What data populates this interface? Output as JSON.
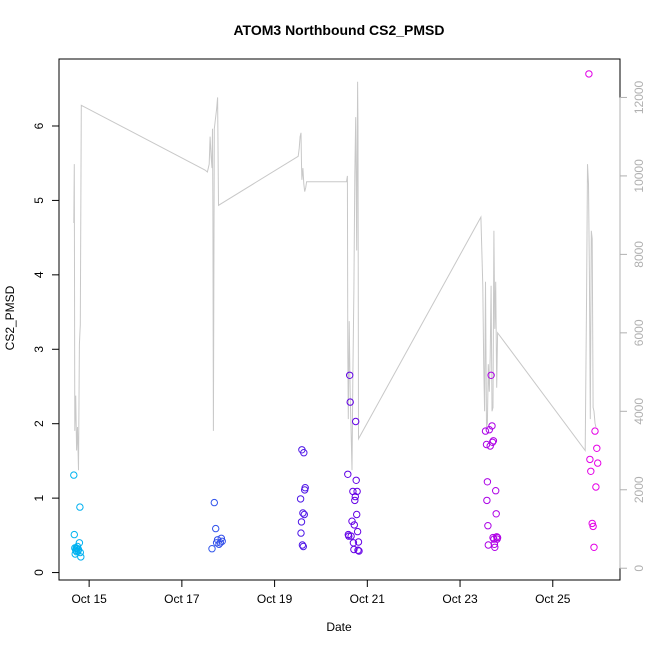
{
  "chart_data": {
    "type": "scatter",
    "title": "ATOM3 Northbound CS2_PMSD",
    "xlabel": "Date",
    "ylabel": "CS2_PMSD",
    "x_ticks": [
      {
        "day": 14.85,
        "label": "Oct 15"
      },
      {
        "day": 16.85,
        "label": "Oct 17"
      },
      {
        "day": 18.85,
        "label": "Oct 19"
      },
      {
        "day": 20.85,
        "label": "Oct 21"
      },
      {
        "day": 22.85,
        "label": "Oct 23"
      },
      {
        "day": 24.85,
        "label": "Oct 25"
      }
    ],
    "xlim": [
      14.2,
      26.3
    ],
    "ylim": [
      -0.1,
      6.9
    ],
    "y_ticks": [
      0,
      1,
      2,
      3,
      4,
      5,
      6
    ],
    "y2_ticks": [
      0,
      2000,
      4000,
      6000,
      8000,
      10000,
      12000
    ],
    "y2lim": [
      -300,
      12980
    ],
    "grid": false,
    "point_color_start": "#00b4f0",
    "point_color_mid": "#5a00e6",
    "point_color_end": "#e600e6",
    "line_color": "#c8c8c8",
    "points": [
      [
        14.52,
        1.31
      ],
      [
        14.53,
        0.51
      ],
      [
        14.54,
        0.33
      ],
      [
        14.55,
        0.25
      ],
      [
        14.56,
        0.3
      ],
      [
        14.57,
        0.33
      ],
      [
        14.58,
        0.28
      ],
      [
        14.59,
        0.32
      ],
      [
        14.6,
        0.35
      ],
      [
        14.61,
        0.29
      ],
      [
        14.62,
        0.31
      ],
      [
        14.64,
        0.4
      ],
      [
        14.65,
        0.88
      ],
      [
        14.66,
        0.27
      ],
      [
        14.67,
        0.21
      ],
      [
        17.5,
        0.32
      ],
      [
        17.55,
        0.94
      ],
      [
        17.58,
        0.59
      ],
      [
        17.6,
        0.4
      ],
      [
        17.62,
        0.44
      ],
      [
        17.65,
        0.38
      ],
      [
        17.68,
        0.4
      ],
      [
        17.7,
        0.46
      ],
      [
        17.72,
        0.42
      ],
      [
        19.41,
        0.99
      ],
      [
        19.42,
        0.53
      ],
      [
        19.43,
        0.68
      ],
      [
        19.44,
        1.65
      ],
      [
        19.45,
        0.37
      ],
      [
        19.46,
        0.8
      ],
      [
        19.47,
        0.35
      ],
      [
        19.48,
        1.61
      ],
      [
        19.49,
        0.78
      ],
      [
        19.5,
        1.11
      ],
      [
        19.51,
        1.14
      ],
      [
        20.43,
        1.32
      ],
      [
        20.44,
        0.51
      ],
      [
        20.45,
        0.49
      ],
      [
        20.47,
        2.65
      ],
      [
        20.48,
        2.29
      ],
      [
        20.5,
        0.49
      ],
      [
        20.52,
        0.69
      ],
      [
        20.54,
        1.09
      ],
      [
        20.55,
        0.4
      ],
      [
        20.56,
        0.31
      ],
      [
        20.57,
        0.64
      ],
      [
        20.58,
        0.97
      ],
      [
        20.59,
        1.02
      ],
      [
        20.6,
        2.03
      ],
      [
        20.61,
        1.24
      ],
      [
        20.62,
        0.78
      ],
      [
        20.63,
        1.09
      ],
      [
        20.64,
        0.55
      ],
      [
        20.65,
        0.3
      ],
      [
        20.66,
        0.41
      ],
      [
        20.67,
        0.29
      ],
      [
        23.4,
        1.9
      ],
      [
        23.42,
        1.72
      ],
      [
        23.43,
        0.97
      ],
      [
        23.44,
        1.22
      ],
      [
        23.45,
        0.63
      ],
      [
        23.46,
        0.37
      ],
      [
        23.48,
        1.92
      ],
      [
        23.5,
        1.7
      ],
      [
        23.52,
        2.65
      ],
      [
        23.54,
        1.97
      ],
      [
        23.55,
        1.75
      ],
      [
        23.56,
        0.47
      ],
      [
        23.57,
        1.77
      ],
      [
        23.58,
        0.45
      ],
      [
        23.59,
        0.38
      ],
      [
        23.6,
        0.34
      ],
      [
        23.62,
        1.1
      ],
      [
        23.63,
        0.79
      ],
      [
        23.64,
        0.48
      ],
      [
        23.65,
        0.45
      ],
      [
        23.66,
        0.47
      ],
      [
        25.63,
        6.7
      ],
      [
        25.65,
        1.52
      ],
      [
        25.67,
        1.36
      ],
      [
        25.7,
        0.66
      ],
      [
        25.72,
        0.62
      ],
      [
        25.74,
        0.34
      ],
      [
        25.76,
        1.9
      ],
      [
        25.78,
        1.15
      ],
      [
        25.8,
        1.67
      ],
      [
        25.82,
        1.47
      ]
    ],
    "line_secondary": [
      [
        14.52,
        8800
      ],
      [
        14.53,
        10300
      ],
      [
        14.54,
        3500
      ],
      [
        14.56,
        4400
      ],
      [
        14.58,
        3000
      ],
      [
        14.6,
        3600
      ],
      [
        14.62,
        2500
      ],
      [
        14.64,
        5700
      ],
      [
        14.65,
        6000
      ],
      [
        14.66,
        6200
      ],
      [
        14.68,
        11800
      ],
      [
        17.35,
        10150
      ],
      [
        17.4,
        10100
      ],
      [
        17.44,
        10300
      ],
      [
        17.46,
        11000
      ],
      [
        17.48,
        10500
      ],
      [
        17.5,
        10200
      ],
      [
        17.51,
        11200
      ],
      [
        17.52,
        9100
      ],
      [
        17.53,
        3500
      ],
      [
        17.55,
        11200
      ],
      [
        17.57,
        11400
      ],
      [
        17.6,
        11700
      ],
      [
        17.62,
        12000
      ],
      [
        17.64,
        9250
      ],
      [
        19.36,
        10500
      ],
      [
        19.38,
        10700
      ],
      [
        19.4,
        11000
      ],
      [
        19.42,
        11100
      ],
      [
        19.43,
        10300
      ],
      [
        19.44,
        9900
      ],
      [
        19.46,
        10200
      ],
      [
        19.48,
        9800
      ],
      [
        19.5,
        9600
      ],
      [
        19.52,
        9700
      ],
      [
        19.54,
        9850
      ],
      [
        20.4,
        9850
      ],
      [
        20.42,
        10000
      ],
      [
        20.43,
        5500
      ],
      [
        20.44,
        3800
      ],
      [
        20.46,
        6300
      ],
      [
        20.48,
        4400
      ],
      [
        20.5,
        3500
      ],
      [
        20.52,
        2500
      ],
      [
        20.54,
        5000
      ],
      [
        20.56,
        7100
      ],
      [
        20.58,
        10000
      ],
      [
        20.6,
        11500
      ],
      [
        20.62,
        8100
      ],
      [
        20.64,
        12400
      ],
      [
        20.65,
        11200
      ],
      [
        20.66,
        3300
      ],
      [
        23.3,
        8950
      ],
      [
        23.34,
        7200
      ],
      [
        23.36,
        5200
      ],
      [
        23.38,
        4000
      ],
      [
        23.4,
        7300
      ],
      [
        23.42,
        3600
      ],
      [
        23.44,
        3700
      ],
      [
        23.46,
        5200
      ],
      [
        23.48,
        4500
      ],
      [
        23.5,
        5400
      ],
      [
        23.52,
        7200
      ],
      [
        23.54,
        4000
      ],
      [
        23.56,
        4100
      ],
      [
        23.58,
        8600
      ],
      [
        23.6,
        6100
      ],
      [
        23.62,
        7300
      ],
      [
        23.64,
        4600
      ],
      [
        23.66,
        6000
      ],
      [
        25.55,
        3000
      ],
      [
        25.58,
        7000
      ],
      [
        25.6,
        10300
      ],
      [
        25.62,
        9800
      ],
      [
        25.64,
        7500
      ],
      [
        25.66,
        3800
      ],
      [
        25.68,
        8600
      ],
      [
        25.7,
        8400
      ],
      [
        25.72,
        4100
      ],
      [
        25.74,
        4000
      ],
      [
        25.76,
        3700
      ],
      [
        25.78,
        3600
      ]
    ]
  }
}
